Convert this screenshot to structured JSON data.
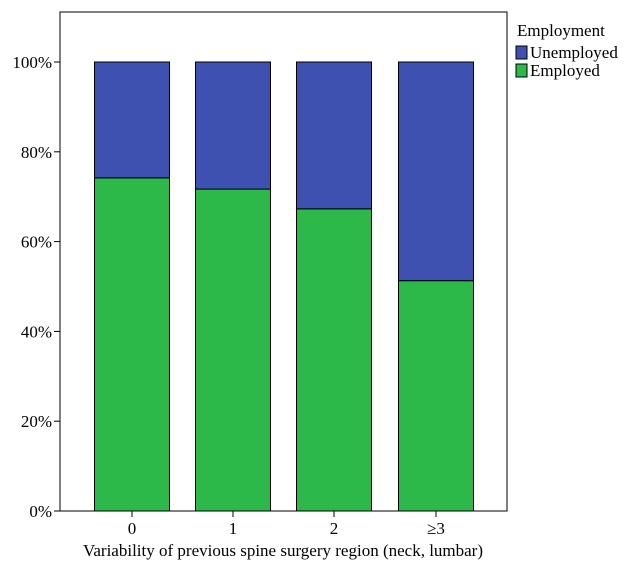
{
  "chart_data": {
    "type": "bar",
    "stacked": true,
    "categories": [
      "0",
      "1",
      "2",
      "≥3"
    ],
    "series": [
      {
        "name": "Employed",
        "values": [
          74.2,
          71.7,
          67.3,
          51.3
        ],
        "color": "#2db84a"
      },
      {
        "name": "Unemployed",
        "values": [
          25.8,
          28.3,
          32.7,
          48.7
        ],
        "color": "#3f51b0"
      }
    ],
    "title": "",
    "xlabel": "Variability of previous spine surgery region (neck, lumbar)",
    "ylabel": "",
    "ylim": [
      0,
      100
    ],
    "yticks": [
      "0%",
      "20%",
      "40%",
      "60%",
      "80%",
      "100%"
    ],
    "grid": false,
    "legend": {
      "title": "Employment",
      "placement": "top-right-outside",
      "entries": [
        "Unemployed",
        "Employed"
      ]
    }
  }
}
